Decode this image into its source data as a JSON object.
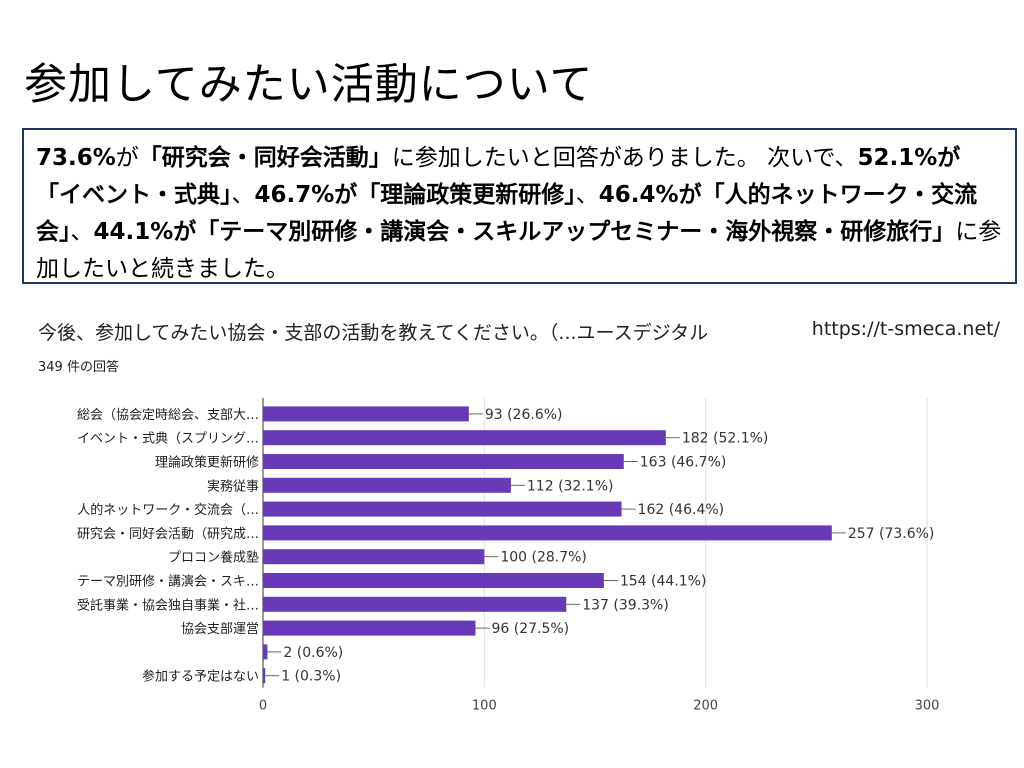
{
  "slide": {
    "title": "参加してみたい活動について",
    "summary": [
      {
        "t": "73.6%",
        "b": true
      },
      {
        "t": "が",
        "b": false
      },
      {
        "t": "「研究会・同好会活動」",
        "b": true
      },
      {
        "t": "に参加したいと回答がありました。 次いで、",
        "b": false
      },
      {
        "t": "52.1%",
        "b": true
      },
      {
        "t": "が「イベント・式典」",
        "b": true
      },
      {
        "t": "、",
        "b": false
      },
      {
        "t": "46.7%が「理論政策更新研修」",
        "b": true
      },
      {
        "t": "、",
        "b": false
      },
      {
        "t": "46.4%が「人的ネットワーク・交流会」",
        "b": true
      },
      {
        "t": "、",
        "b": false
      },
      {
        "t": "44.1%が「テーマ別研修・講演会・スキルアップセミナー・海外視察・研修旅行」",
        "b": true
      },
      {
        "t": "に参加したいと続きました。",
        "b": false
      }
    ]
  },
  "form": {
    "question": "今後、参加してみたい協会・支部の活動を教えてください。（...ユースデジタル",
    "url": "https://t-smeca.net/",
    "responses": "349 件の回答"
  },
  "chart_data": {
    "type": "bar",
    "orientation": "horizontal",
    "categories": [
      "総会（協会定時総会、支部大…",
      "イベント・式典（スプリング…",
      "理論政策更新研修",
      "実務従事",
      "人的ネットワーク・交流会（…",
      "研究会・同好会活動（研究成…",
      "プロコン養成塾",
      "テーマ別研修・講演会・スキ…",
      "受託事業・協会独自事業・社…",
      "協会支部運営",
      "",
      "参加する予定はない"
    ],
    "values": [
      93,
      182,
      163,
      112,
      162,
      257,
      100,
      154,
      137,
      96,
      2,
      1
    ],
    "labels": [
      "93 (26.6%)",
      "182 (52.1%)",
      "163 (46.7%)",
      "112 (32.1%)",
      "162 (46.4%)",
      "257 (73.6%)",
      "100 (28.7%)",
      "154 (44.1%)",
      "137 (39.3%)",
      "96 (27.5%)",
      "2 (0.6%)",
      "1 (0.3%)"
    ],
    "xticks": [
      0,
      100,
      200,
      300
    ],
    "xlim": [
      0,
      300
    ],
    "grid": true,
    "bar_color": "#673ab7"
  }
}
